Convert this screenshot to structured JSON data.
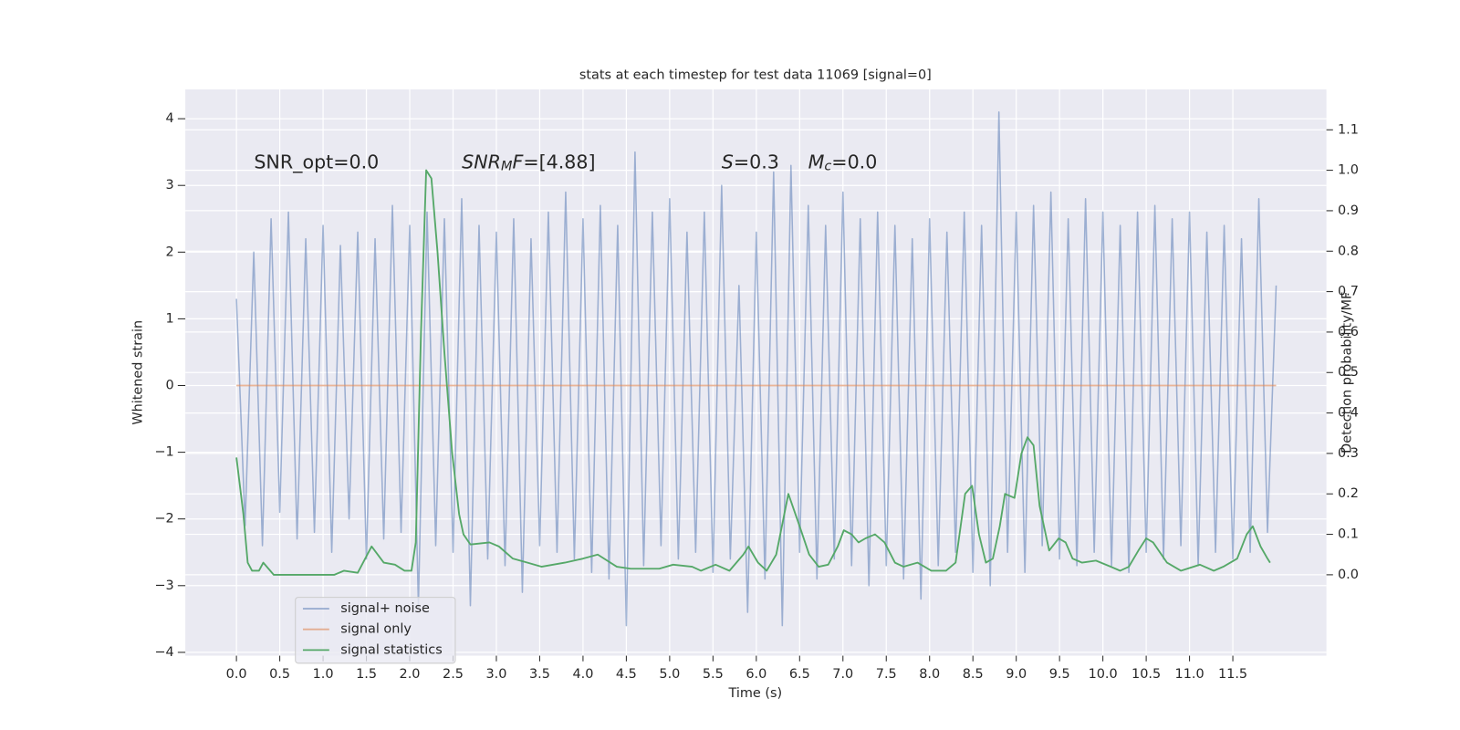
{
  "chart_data": {
    "type": "line",
    "title": "stats at each timestep for test data 11069 [signal=0]",
    "x_label": "Time (s)",
    "y_label": "Whitened strain",
    "y2_label": "Detection probability/MF",
    "annotations": [
      [
        "SNR_opt=0.0"
      ],
      [
        "SNR",
        "M",
        "F",
        "=[4.88]"
      ],
      [
        "S",
        "=0.3"
      ],
      [
        "M",
        "c",
        "=0.0"
      ]
    ],
    "xlim": [
      -0.59,
      12.58
    ],
    "ylim": [
      -4.05,
      4.44
    ],
    "y2lim": [
      -0.2,
      1.2
    ],
    "xticks": [
      {
        "value": 0,
        "label": "0.0"
      },
      0.5,
      {
        "value": 1,
        "label": "1.0"
      },
      1.5,
      {
        "value": 2,
        "label": "2.0"
      },
      2.5,
      {
        "value": 3,
        "label": "3.0"
      },
      3.5,
      {
        "value": 4,
        "label": "4.0"
      },
      4.5,
      {
        "value": 5,
        "label": "5.0"
      },
      5.5,
      {
        "value": 6,
        "label": "6.0"
      },
      6.5,
      {
        "value": 7,
        "label": "7.0"
      },
      7.5,
      {
        "value": 8,
        "label": "8.0"
      },
      8.5,
      {
        "value": 9,
        "label": "9.0"
      },
      9.5,
      {
        "value": 10,
        "label": "10.0"
      },
      10.5,
      {
        "value": 11,
        "label": "11.0"
      },
      11.5
    ],
    "yticks": [
      {
        "value": -4,
        "label": "−4"
      },
      {
        "value": -3,
        "label": "−3"
      },
      {
        "value": -2,
        "label": "−2"
      },
      {
        "value": -1,
        "label": "−1"
      },
      0,
      1,
      2,
      3,
      4
    ],
    "y2ticks": [
      {
        "value": 0,
        "label": "0.0"
      },
      0.1,
      0.2,
      0.3,
      0.4,
      0.5,
      0.6,
      0.7,
      0.8,
      0.9,
      {
        "value": 1,
        "label": "1.0"
      },
      1.1
    ],
    "grid": true,
    "legend": "lower left",
    "series": [
      {
        "name": "signal+ noise",
        "color": "#4c72b0",
        "opacity": 0.5,
        "x": [
          0,
          0.1,
          0.2,
          0.3,
          0.4,
          0.5,
          0.6,
          0.7,
          0.8,
          0.9,
          1,
          1.1,
          1.2,
          1.3,
          1.4,
          1.5,
          1.6,
          1.7,
          1.8,
          1.9,
          2,
          2.1,
          2.2,
          2.3,
          2.4,
          2.5,
          2.6,
          2.7,
          2.8,
          2.9,
          3,
          3.1,
          3.2,
          3.3,
          3.4,
          3.5,
          3.6,
          3.7,
          3.8,
          3.9,
          4,
          4.1,
          4.2,
          4.3,
          4.4,
          4.5,
          4.6,
          4.7,
          4.8,
          4.9,
          5,
          5.1,
          5.2,
          5.3,
          5.4,
          5.5,
          5.6,
          5.7,
          5.8,
          5.9,
          6,
          6.1,
          6.2,
          6.3,
          6.4,
          6.5,
          6.6,
          6.7,
          6.8,
          6.9,
          7,
          7.1,
          7.2,
          7.3,
          7.4,
          7.5,
          7.6,
          7.7,
          7.8,
          7.9,
          8,
          8.1,
          8.2,
          8.3,
          8.4,
          8.5,
          8.6,
          8.7,
          8.8,
          8.9,
          9,
          9.1,
          9.2,
          9.3,
          9.4,
          9.5,
          9.6,
          9.7,
          9.8,
          9.9,
          10,
          10.1,
          10.2,
          10.3,
          10.4,
          10.5,
          10.6,
          10.7,
          10.8,
          10.9,
          11,
          11.1,
          11.2,
          11.3,
          11.4,
          11.5,
          11.6,
          11.7,
          11.8,
          11.9,
          12
        ],
        "values": [
          1.3,
          -2.1,
          2.0,
          -2.4,
          2.5,
          -1.9,
          2.6,
          -2.3,
          2.2,
          -2.2,
          2.4,
          -2.5,
          2.1,
          -2.0,
          2.3,
          -2.6,
          2.2,
          -2.3,
          2.7,
          -2.2,
          2.4,
          -3.3,
          2.6,
          -2.4,
          2.5,
          -2.5,
          2.8,
          -3.3,
          2.4,
          -2.6,
          2.3,
          -2.7,
          2.5,
          -3.1,
          2.2,
          -2.4,
          2.6,
          -2.5,
          2.9,
          -2.6,
          2.5,
          -2.8,
          2.7,
          -2.9,
          2.4,
          -3.6,
          3.5,
          -2.7,
          2.6,
          -2.4,
          2.8,
          -2.6,
          2.3,
          -2.5,
          2.6,
          -2.8,
          3.0,
          -2.6,
          1.5,
          -3.4,
          2.3,
          -2.9,
          3.2,
          -3.6,
          3.3,
          -2.5,
          2.7,
          -2.9,
          2.4,
          -2.6,
          2.9,
          -2.7,
          2.5,
          -3.0,
          2.6,
          -2.7,
          2.4,
          -2.9,
          2.2,
          -3.2,
          2.5,
          -2.7,
          2.3,
          -2.5,
          2.6,
          -2.8,
          2.4,
          -3.0,
          4.1,
          -2.5,
          2.6,
          -2.8,
          2.7,
          -2.4,
          2.9,
          -2.6,
          2.5,
          -2.7,
          2.8,
          -2.5,
          2.6,
          -2.7,
          2.4,
          -2.8,
          2.6,
          -2.5,
          2.7,
          -2.6,
          2.5,
          -2.4,
          2.6,
          -2.7,
          2.3,
          -2.5,
          2.4,
          -2.6,
          2.2,
          -2.5,
          2.8,
          -2.2,
          1.5
        ]
      },
      {
        "name": "signal only",
        "color": "#dd8452",
        "opacity": 0.6,
        "x": [
          0,
          12
        ],
        "values": [
          0,
          0
        ]
      },
      {
        "name": "signal statistics",
        "color": "#55a868",
        "opacity": 1,
        "axis": "y2",
        "x": [
          0,
          0.08,
          0.13,
          0.18,
          0.26,
          0.31,
          0.43,
          0.53,
          0.97,
          1.13,
          1.24,
          1.4,
          1.56,
          1.7,
          1.83,
          1.94,
          2.02,
          2.07,
          2.13,
          2.19,
          2.25,
          2.32,
          2.4,
          2.49,
          2.57,
          2.62,
          2.7,
          2.92,
          3.03,
          3.19,
          3.36,
          3.52,
          3.79,
          4.0,
          4.17,
          4.39,
          4.55,
          4.88,
          5.04,
          5.26,
          5.36,
          5.53,
          5.69,
          5.85,
          5.91,
          6.02,
          6.12,
          6.23,
          6.37,
          6.5,
          6.61,
          6.72,
          6.83,
          6.94,
          7.01,
          7.1,
          7.18,
          7.26,
          7.37,
          7.48,
          7.6,
          7.7,
          7.86,
          8.02,
          8.19,
          8.3,
          8.41,
          8.49,
          8.57,
          8.65,
          8.73,
          8.81,
          8.87,
          8.98,
          9.06,
          9.13,
          9.2,
          9.27,
          9.38,
          9.49,
          9.57,
          9.65,
          9.76,
          9.92,
          10.09,
          10.2,
          10.3,
          10.41,
          10.5,
          10.58,
          10.74,
          10.9,
          11.12,
          11.28,
          11.39,
          11.55,
          11.66,
          11.73,
          11.82,
          11.9,
          11.93
        ],
        "values": [
          0.29,
          0.15,
          0.03,
          0.01,
          0.01,
          0.03,
          0.0,
          0.0,
          0.0,
          0.0,
          0.01,
          0.005,
          0.07,
          0.03,
          0.025,
          0.01,
          0.01,
          0.08,
          0.6,
          1.0,
          0.98,
          0.8,
          0.55,
          0.3,
          0.15,
          0.1,
          0.075,
          0.08,
          0.07,
          0.04,
          0.03,
          0.02,
          0.03,
          0.04,
          0.05,
          0.02,
          0.015,
          0.015,
          0.025,
          0.02,
          0.01,
          0.025,
          0.01,
          0.05,
          0.07,
          0.03,
          0.01,
          0.05,
          0.2,
          0.12,
          0.05,
          0.02,
          0.025,
          0.07,
          0.11,
          0.1,
          0.08,
          0.09,
          0.1,
          0.08,
          0.03,
          0.02,
          0.03,
          0.01,
          0.01,
          0.03,
          0.2,
          0.22,
          0.1,
          0.03,
          0.04,
          0.12,
          0.2,
          0.19,
          0.3,
          0.34,
          0.32,
          0.17,
          0.06,
          0.09,
          0.08,
          0.04,
          0.03,
          0.035,
          0.02,
          0.01,
          0.02,
          0.06,
          0.09,
          0.08,
          0.03,
          0.01,
          0.025,
          0.01,
          0.02,
          0.04,
          0.1,
          0.12,
          0.07,
          0.04,
          0.03
        ]
      }
    ]
  }
}
